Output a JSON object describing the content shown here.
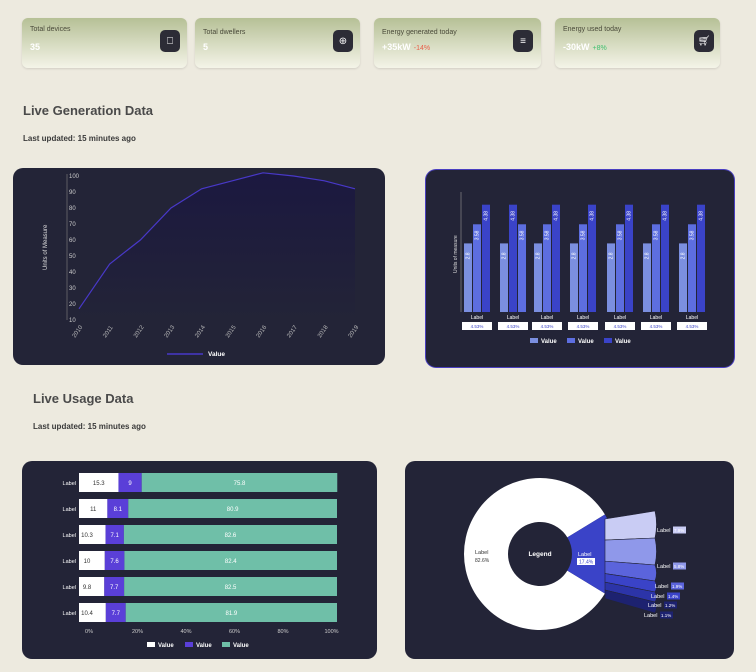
{
  "stats": [
    {
      "label": "Total devices",
      "value": "35",
      "change": "",
      "icon": "door-icon"
    },
    {
      "label": "Total dwellers",
      "value": "5",
      "change": "",
      "icon": "globe-icon"
    },
    {
      "label": "Energy generated today",
      "value": "+35kW",
      "change": "-14%",
      "change_color": "#e8604a",
      "icon": "document-icon"
    },
    {
      "label": "Energy used today",
      "value": "-30kW",
      "change": "+8%",
      "change_color": "#3fbf6e",
      "icon": "cart-icon"
    }
  ],
  "generation": {
    "title": "Live Generation Data",
    "updated": "Last updated: 15 minutes ago"
  },
  "usage": {
    "title": "Live Usage Data",
    "updated": "Last updated: 15 minutes ago"
  },
  "colors": {
    "accent_blue": "#3a43c8",
    "purple": "#5a3fd8",
    "teal": "#6fbfa8",
    "bg": "#edeadf",
    "panel": "#232437"
  },
  "chart_data": [
    {
      "type": "area",
      "ylabel": "Units of Measure",
      "x": [
        "2010",
        "2011",
        "2012",
        "2013",
        "2014",
        "2015",
        "2016",
        "2017",
        "2018",
        "2019"
      ],
      "series": [
        {
          "name": "Value",
          "values": [
            17,
            45,
            60,
            80,
            92,
            97,
            102,
            100,
            97,
            92
          ]
        }
      ],
      "ylim": [
        10,
        100
      ],
      "yticks": [
        10,
        20,
        30,
        40,
        50,
        60,
        70,
        80,
        90,
        100
      ]
    },
    {
      "type": "bar",
      "ylabel": "Units of measure",
      "categories": [
        "Label",
        "Label",
        "Label",
        "Label",
        "Label",
        "Label",
        "Label"
      ],
      "category_notes": [
        "4.53%",
        "4.53%",
        "4.53%",
        "4.53%",
        "4.53%",
        "4.53%",
        "4.53%"
      ],
      "series": [
        {
          "name": "Value",
          "values": [
            2.8,
            2.8,
            2.8,
            2.8,
            2.8,
            2.8,
            2.8
          ],
          "labels": [
            "2.8",
            "2.8",
            "2.8",
            "2.8",
            "2.8",
            "2.8",
            "2.8"
          ]
        },
        {
          "name": "Value",
          "values": [
            3.58,
            3.58,
            3.58,
            3.58,
            3.58,
            3.58,
            3.58
          ],
          "labels": [
            "3.58",
            "3.58",
            "3.58",
            "3.58",
            "3.58",
            "3.58",
            "3.58"
          ]
        },
        {
          "name": "Value",
          "values": [
            4.38,
            4.38,
            4.38,
            4.38,
            4.38,
            4.38,
            4.38
          ],
          "labels": [
            "4.38",
            "4.38",
            "4.38",
            "4.38",
            "4.38",
            "4.38",
            "4.38"
          ]
        }
      ]
    },
    {
      "type": "bar",
      "orientation": "horizontal-stacked-percent",
      "categories": [
        "Label",
        "Label",
        "Label",
        "Label",
        "Label",
        "Label"
      ],
      "series": [
        {
          "name": "Value",
          "color": "#ffffff",
          "values": [
            15.3,
            11,
            10.3,
            10,
            9.8,
            10.4
          ]
        },
        {
          "name": "Value",
          "color": "#5a3fd8",
          "values": [
            9.0,
            8.1,
            7.1,
            7.6,
            7.7,
            7.7
          ]
        },
        {
          "name": "Value",
          "color": "#6fbfa8",
          "values": [
            75.8,
            80.9,
            82.6,
            82.4,
            82.5,
            81.9
          ]
        }
      ],
      "xticks": [
        "0%",
        "20%",
        "40%",
        "60%",
        "80%",
        "100%"
      ]
    },
    {
      "type": "pie",
      "center_label": "Legend",
      "slices": [
        {
          "label": "Label",
          "value": 82.6,
          "text": "82.6%"
        },
        {
          "label": "Label",
          "value": 17.4,
          "text": "17.4%"
        }
      ],
      "breakdown": [
        {
          "label": "Label",
          "text": "7.9%"
        },
        {
          "label": "Label",
          "text": "5.8%"
        },
        {
          "label": "Label",
          "text": "1.9%"
        },
        {
          "label": "Label",
          "text": "1.4%"
        },
        {
          "label": "Label",
          "text": "1.2%"
        },
        {
          "label": "Label",
          "text": "1.1%"
        }
      ]
    }
  ]
}
